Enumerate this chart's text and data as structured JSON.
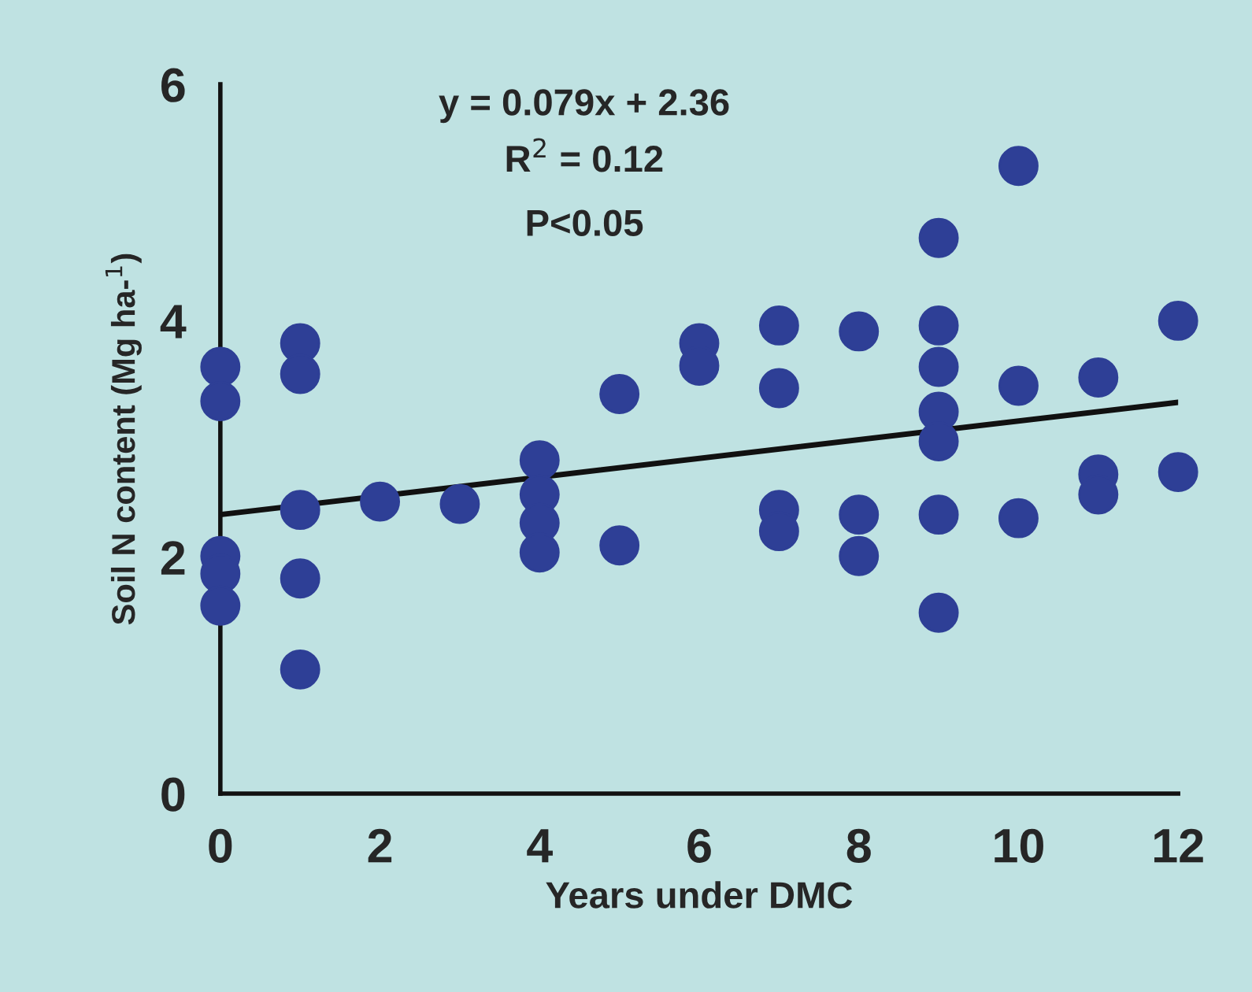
{
  "chart_data": {
    "type": "scatter",
    "xlabel": "Years under DMC",
    "ylabel": "Soil N content (Mg ha-$^{1}$)",
    "annotations": [
      "y = 0.079x + 2.36",
      "R$^{2}$ = 0.12",
      "P<0.05"
    ],
    "xlim": [
      0,
      12
    ],
    "ylim": [
      0,
      6
    ],
    "xticks": [
      0,
      2,
      4,
      6,
      8,
      10,
      12
    ],
    "yticks": [
      0,
      2,
      4,
      6
    ],
    "grid": false,
    "legend": false,
    "series": [
      {
        "marker": "circle",
        "color": "#2e3f96",
        "x": [
          0,
          0,
          0,
          0,
          0,
          1,
          1,
          1,
          1,
          1,
          2,
          3,
          4,
          4,
          4,
          4,
          5,
          5,
          6,
          6,
          7,
          7,
          7,
          7,
          8,
          8,
          8,
          9,
          9,
          9,
          9,
          9,
          9,
          9,
          10,
          10,
          10,
          11,
          11,
          11,
          12,
          12
        ],
        "values": [
          3.61,
          3.32,
          2.01,
          1.86,
          1.59,
          3.81,
          3.55,
          2.4,
          1.82,
          1.05,
          2.47,
          2.45,
          2.82,
          2.53,
          2.29,
          2.04,
          3.38,
          2.1,
          3.81,
          3.62,
          3.96,
          3.43,
          2.4,
          2.22,
          3.91,
          2.36,
          2.01,
          4.7,
          3.96,
          3.61,
          3.23,
          2.98,
          2.36,
          1.53,
          5.31,
          3.45,
          2.33,
          3.52,
          2.7,
          2.53,
          4.0,
          2.72
        ]
      },
      {
        "type": "line",
        "color": "#111111",
        "x": [
          0,
          12
        ],
        "values": [
          2.36,
          3.31
        ]
      }
    ]
  }
}
